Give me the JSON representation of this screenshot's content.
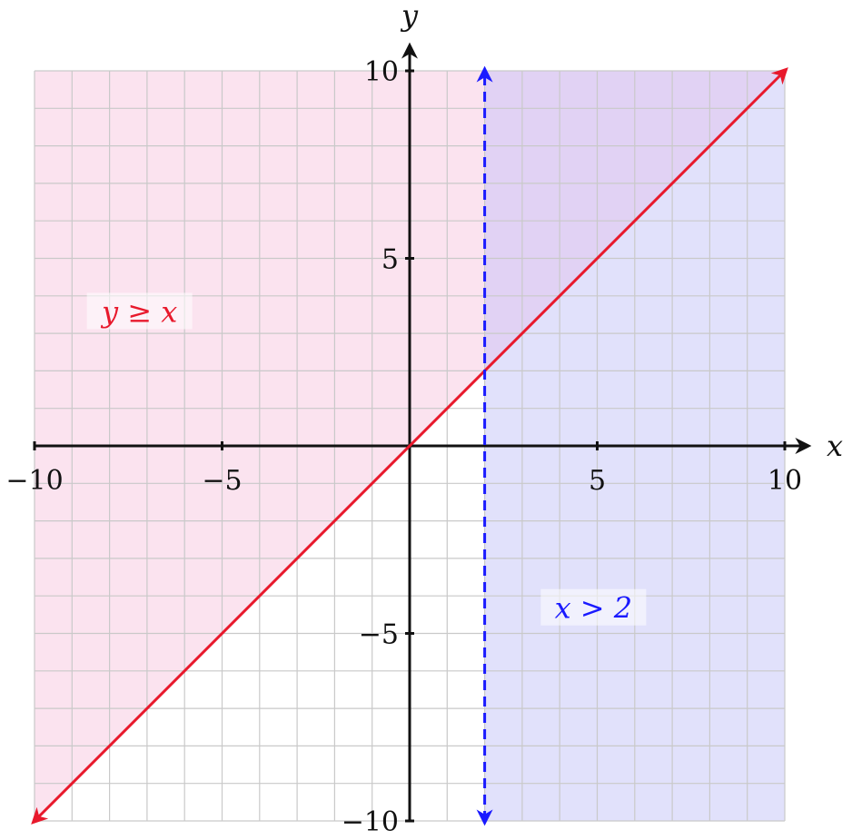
{
  "chart_data": {
    "type": "line",
    "title": "",
    "xlabel": "x",
    "ylabel": "y",
    "xlim": [
      -10,
      10
    ],
    "ylim": [
      -10,
      10
    ],
    "grid": true,
    "grid_step": 1,
    "x_ticks": [
      {
        "value": -10,
        "label": "−10"
      },
      {
        "value": -5,
        "label": "−5"
      },
      {
        "value": 5,
        "label": "5"
      },
      {
        "value": 10,
        "label": "10"
      }
    ],
    "y_ticks": [
      {
        "value": -10,
        "label": "−10"
      },
      {
        "value": -5,
        "label": "−5"
      },
      {
        "value": 5,
        "label": "5"
      },
      {
        "value": 10,
        "label": "10"
      }
    ],
    "series": [
      {
        "equation": "y = x",
        "x": [
          -10,
          10
        ],
        "y": [
          -10,
          10
        ],
        "style": "solid",
        "color": "#e8192c"
      },
      {
        "equation": "x = 2",
        "x": [
          2,
          2
        ],
        "y": [
          -10,
          10
        ],
        "style": "dashed",
        "color": "#1a1aff"
      }
    ],
    "regions": [
      {
        "inequality": "y ≥ x",
        "fill": "#fbe3ef"
      },
      {
        "inequality": "x > 2",
        "fill": "#e1e1fb"
      },
      {
        "inequality": "overlap",
        "fill": "#e1d2f4"
      }
    ],
    "annotations": [
      {
        "text": "y ≥ x",
        "x": -7.2,
        "y": 3.5,
        "color": "#e8192c"
      },
      {
        "text": "x > 2",
        "x": 4.9,
        "y": -4.4,
        "color": "#1a1aff"
      }
    ]
  }
}
